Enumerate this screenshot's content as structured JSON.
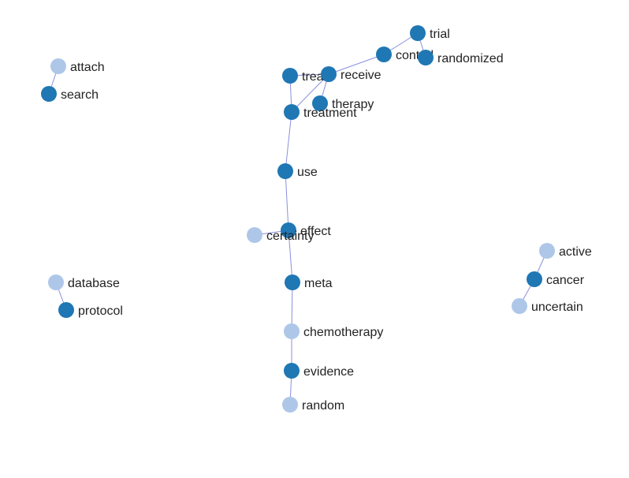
{
  "colors": {
    "dark": "#1f77b4",
    "light": "#aec7e8",
    "edge": "#8a8fdd"
  },
  "nodes": [
    {
      "id": "attach",
      "label": "attach",
      "group": "light"
    },
    {
      "id": "search",
      "label": "search",
      "group": "dark"
    },
    {
      "id": "trial",
      "label": "trial",
      "group": "dark"
    },
    {
      "id": "control",
      "label": "control",
      "group": "dark"
    },
    {
      "id": "randomized",
      "label": "randomized",
      "group": "dark"
    },
    {
      "id": "treat",
      "label": "treat",
      "group": "dark"
    },
    {
      "id": "receive",
      "label": "receive",
      "group": "dark"
    },
    {
      "id": "therapy",
      "label": "therapy",
      "group": "dark"
    },
    {
      "id": "treatment",
      "label": "treatment",
      "group": "dark"
    },
    {
      "id": "use",
      "label": "use",
      "group": "dark"
    },
    {
      "id": "effect",
      "label": "effect",
      "group": "dark"
    },
    {
      "id": "certainty",
      "label": "certainty",
      "group": "light"
    },
    {
      "id": "meta",
      "label": "meta",
      "group": "dark"
    },
    {
      "id": "chemotherapy",
      "label": "chemotherapy",
      "group": "light"
    },
    {
      "id": "evidence",
      "label": "evidence",
      "group": "dark"
    },
    {
      "id": "random",
      "label": "random",
      "group": "light"
    },
    {
      "id": "database",
      "label": "database",
      "group": "light"
    },
    {
      "id": "protocol",
      "label": "protocol",
      "group": "dark"
    },
    {
      "id": "active",
      "label": "active",
      "group": "light"
    },
    {
      "id": "cancer",
      "label": "cancer",
      "group": "dark"
    },
    {
      "id": "uncertain",
      "label": "uncertain",
      "group": "light"
    }
  ],
  "edges": [
    [
      "attach",
      "search"
    ],
    [
      "trial",
      "control"
    ],
    [
      "trial",
      "randomized"
    ],
    [
      "control",
      "receive"
    ],
    [
      "treat",
      "receive"
    ],
    [
      "treat",
      "treatment"
    ],
    [
      "receive",
      "treatment"
    ],
    [
      "receive",
      "therapy"
    ],
    [
      "treatment",
      "use"
    ],
    [
      "use",
      "effect"
    ],
    [
      "effect",
      "certainty"
    ],
    [
      "effect",
      "meta"
    ],
    [
      "meta",
      "chemotherapy"
    ],
    [
      "chemotherapy",
      "evidence"
    ],
    [
      "evidence",
      "random"
    ],
    [
      "database",
      "protocol"
    ],
    [
      "active",
      "cancer"
    ],
    [
      "cancer",
      "uncertain"
    ]
  ]
}
